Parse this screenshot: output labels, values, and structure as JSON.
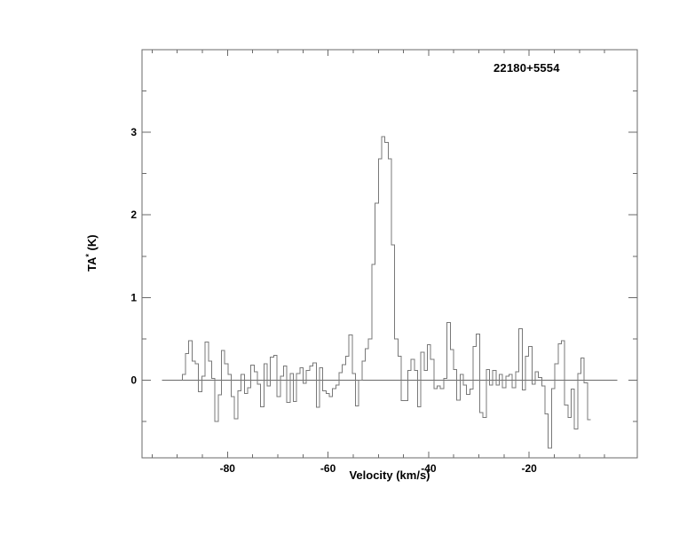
{
  "labels": {
    "source_label": "22180+5554",
    "xlabel": "Velocity (km/s)",
    "ylabel_pre": "TA",
    "ylabel_sup": "*",
    "ylabel_post": " (K)"
  },
  "chart_data": {
    "type": "line",
    "subtype": "step-histogram-spectrum",
    "title": "22180+5554",
    "xlabel": "Velocity (km/s)",
    "ylabel": "TA* (K)",
    "xlim": [
      -97,
      1.5
    ],
    "ylim": [
      -0.94,
      4.0
    ],
    "x_major_ticks": [
      -80,
      -60,
      -40,
      -20
    ],
    "x_minor_tick_step": 5,
    "x_minor_tick_range": [
      -95,
      -5
    ],
    "y_major_ticks": [
      0,
      1,
      2,
      3
    ],
    "y_minor_tick_step": 0.5,
    "grid": false,
    "legend_position": "none",
    "line_color": "#787878",
    "frame_color": "#6a6a6a",
    "text_color": "#000000",
    "baseline": {
      "y": 0,
      "v_start": -93.0,
      "v_end": -2.5
    },
    "spectrum": {
      "v_start": -89.0,
      "dv": 0.65,
      "x_unit": "km/s",
      "y_unit": "K",
      "peak_T": 2.95,
      "peak_v": -49.0,
      "values": [
        0.07,
        0.32,
        0.48,
        0.23,
        0.2,
        -0.14,
        0.05,
        0.46,
        0.23,
        0.02,
        -0.5,
        -0.18,
        0.36,
        0.2,
        0.07,
        -0.2,
        -0.47,
        -0.13,
        0.07,
        -0.16,
        -0.09,
        0.18,
        0.1,
        -0.05,
        -0.32,
        0.2,
        -0.07,
        0.28,
        0.3,
        -0.2,
        0.05,
        0.17,
        -0.27,
        0.08,
        -0.26,
        0.08,
        0.15,
        -0.04,
        0.12,
        0.17,
        0.21,
        -0.33,
        0.15,
        -0.13,
        -0.16,
        -0.2,
        -0.1,
        -0.06,
        0.09,
        0.19,
        0.29,
        0.55,
        0.08,
        -0.31,
        0.0,
        0.23,
        0.38,
        0.5,
        1.4,
        2.14,
        2.68,
        2.95,
        2.88,
        2.68,
        1.64,
        0.5,
        0.29,
        -0.25,
        -0.25,
        0.12,
        0.25,
        0.12,
        -0.32,
        0.34,
        0.12,
        0.43,
        0.25,
        -0.1,
        -0.07,
        -0.1,
        0.02,
        0.7,
        0.37,
        0.13,
        -0.24,
        0.07,
        -0.06,
        -0.17,
        -0.11,
        0.41,
        0.56,
        -0.39,
        -0.45,
        0.13,
        -0.06,
        0.12,
        -0.06,
        0.07,
        -0.09,
        0.05,
        0.07,
        -0.09,
        0.1,
        0.62,
        -0.12,
        0.29,
        0.41,
        -0.05,
        0.1,
        0.03,
        -0.07,
        -0.41,
        -0.82,
        -0.1,
        0.2,
        0.44,
        0.48,
        -0.3,
        -0.45,
        -0.11,
        -0.59,
        0.08,
        0.27,
        -0.03,
        -0.48
      ]
    }
  }
}
